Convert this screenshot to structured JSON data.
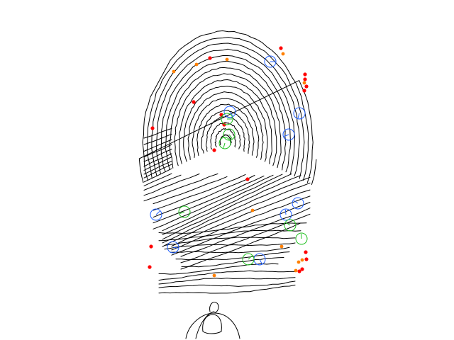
{
  "image": {
    "subject": "fingerprint-ridge-skeleton-with-minutiae",
    "background": "#ffffff",
    "ridge_color": "#000000"
  },
  "marker_types": {
    "red_dot": {
      "color": "#ff0000",
      "shape": "filled-dot"
    },
    "orange_dot": {
      "color": "#ff8000",
      "shape": "filled-dot"
    },
    "blue_circle": {
      "color": "#1f5fff",
      "shape": "ring-with-tick"
    },
    "green_circle": {
      "color": "#20c020",
      "shape": "ring-with-tick"
    }
  }
}
